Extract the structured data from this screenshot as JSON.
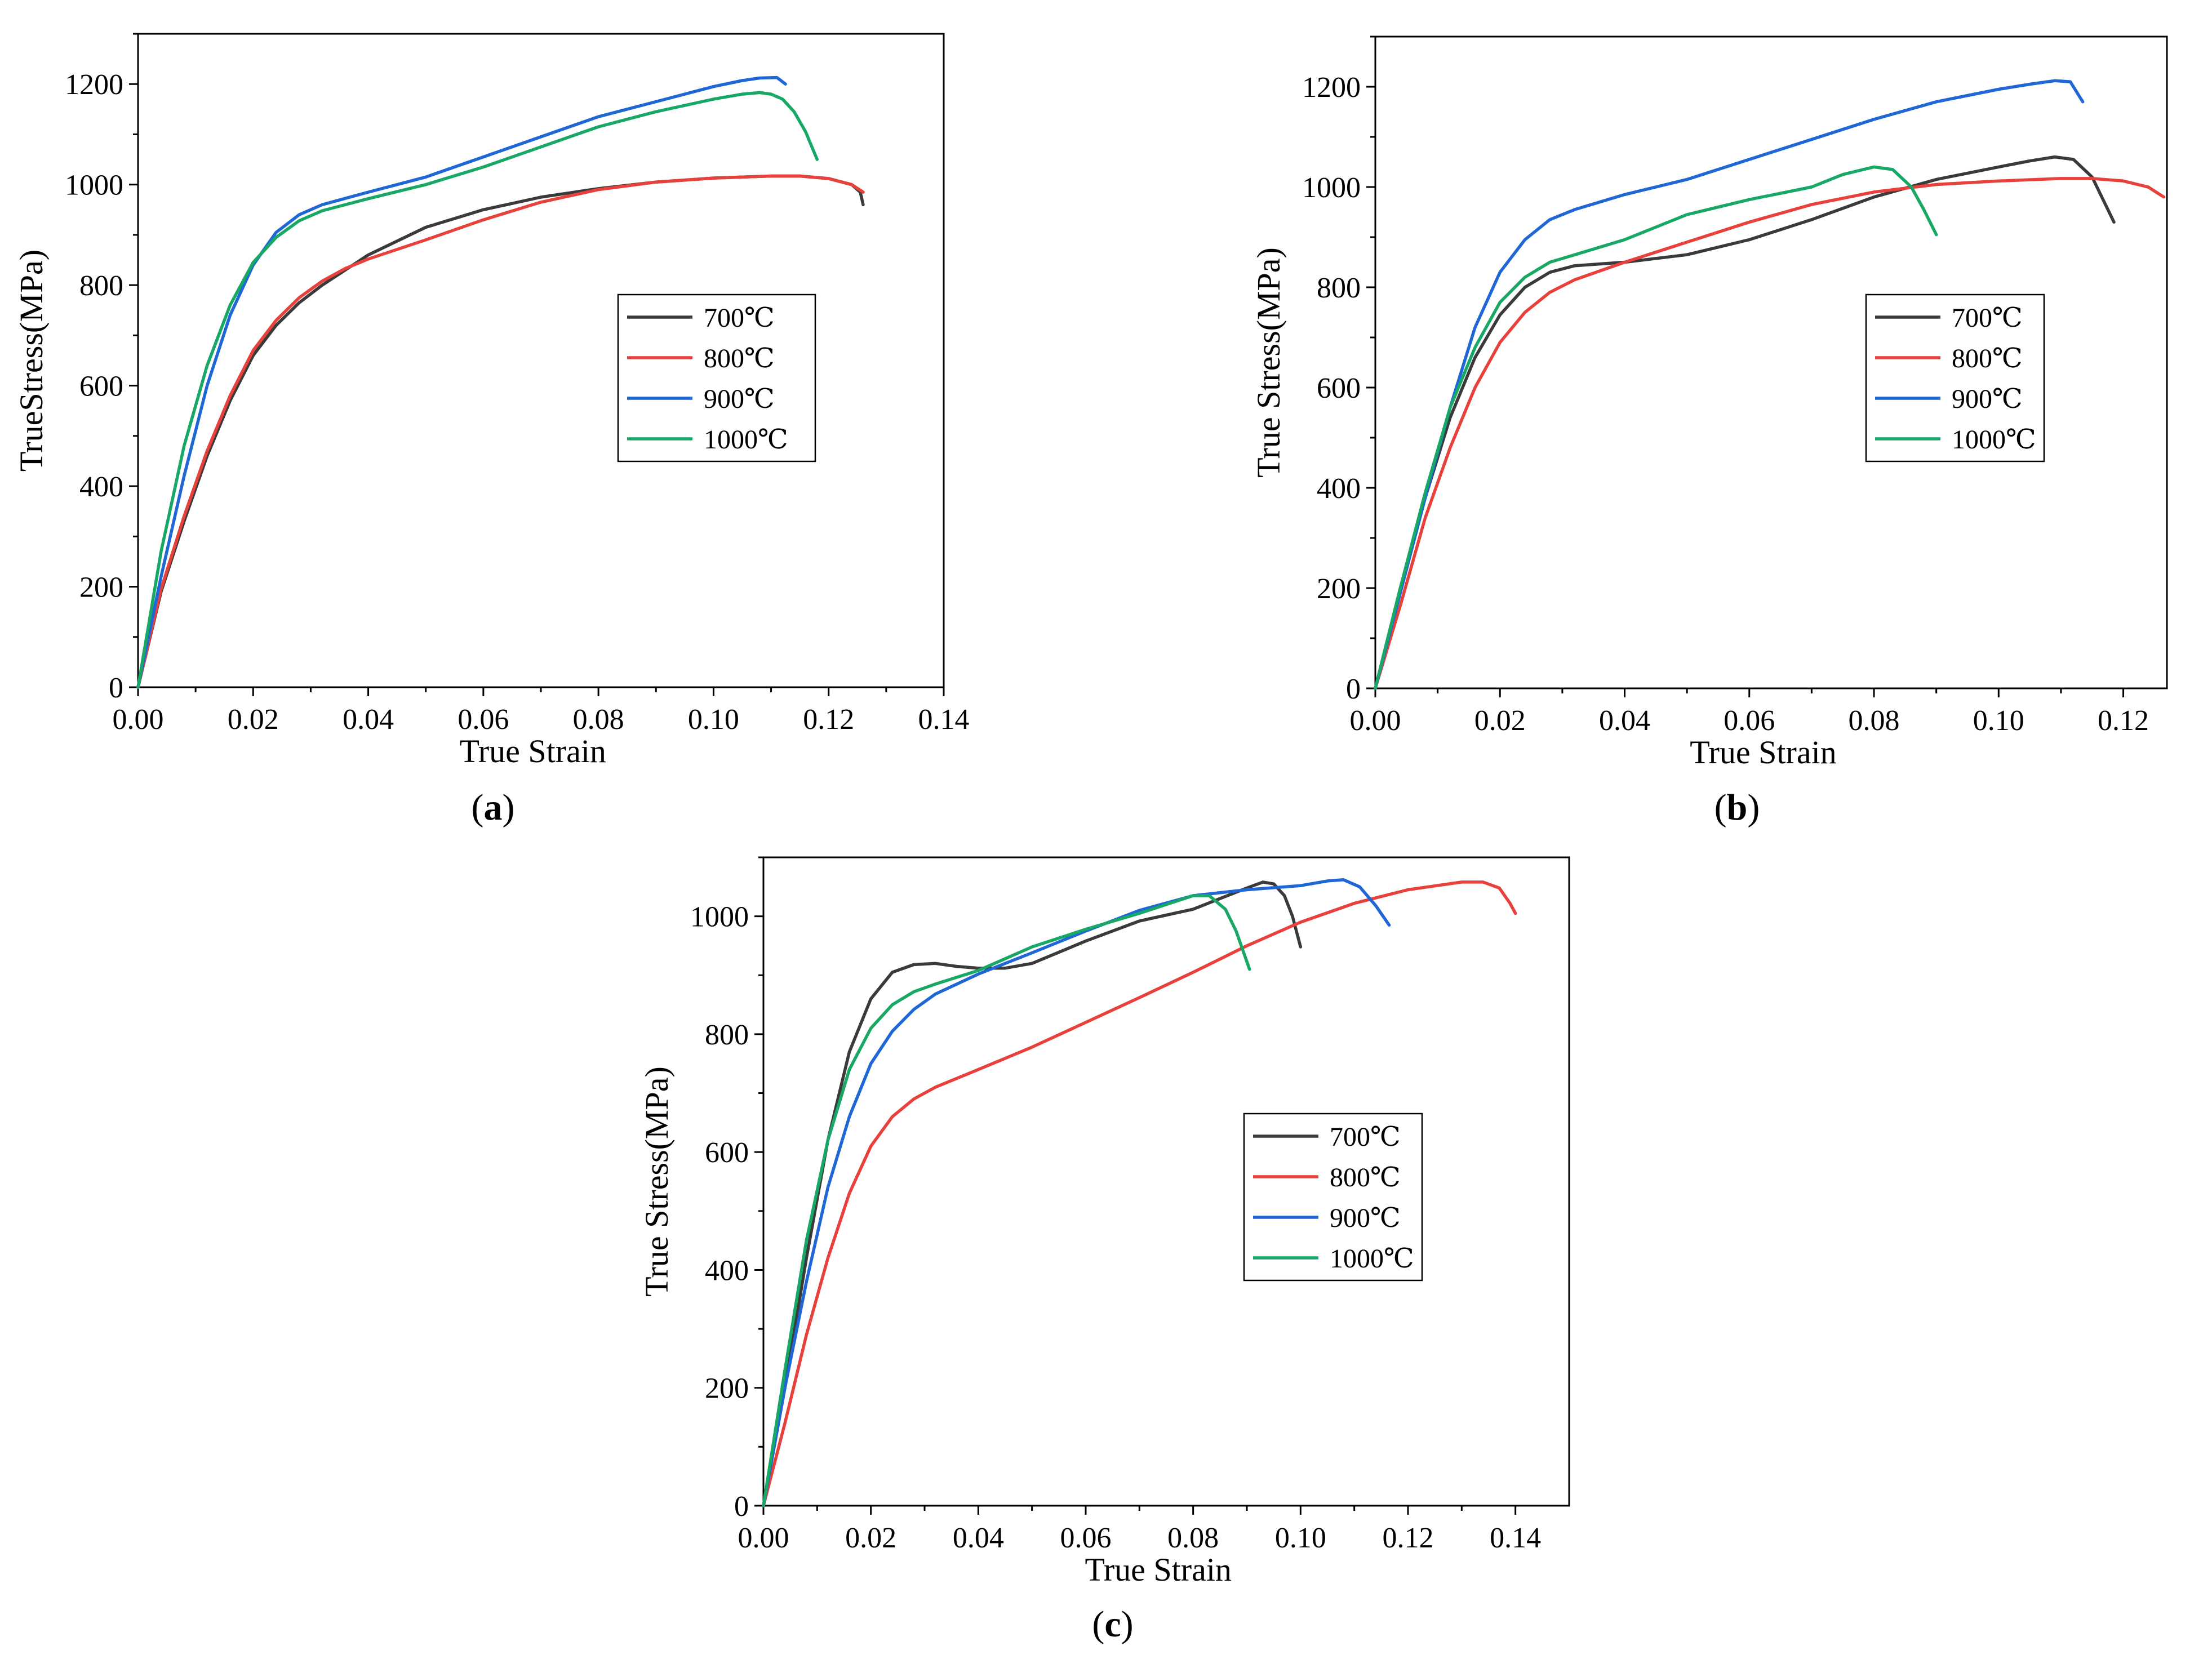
{
  "figure": {
    "panels": [
      "a",
      "b",
      "c"
    ]
  },
  "chart_data": [
    {
      "id": "a",
      "type": "line",
      "panel_label": "a",
      "xlabel": "True Strain",
      "ylabel": "TrueStress(MPa)",
      "xlim": [
        0,
        0.14
      ],
      "ylim": [
        0,
        1300
      ],
      "xticks": [
        "0.00",
        "0.02",
        "0.04",
        "0.06",
        "0.08",
        "0.10",
        "0.12",
        "0.14"
      ],
      "yticks": [
        "0",
        "200",
        "400",
        "600",
        "800",
        "1000",
        "1200"
      ],
      "legend_position": "center-right",
      "series": [
        {
          "name": "700℃",
          "color": "#3a3a3a",
          "x": [
            0,
            0.004,
            0.008,
            0.012,
            0.016,
            0.02,
            0.024,
            0.028,
            0.032,
            0.04,
            0.05,
            0.06,
            0.07,
            0.08,
            0.09,
            0.1,
            0.11,
            0.115,
            0.12,
            0.124,
            0.1255,
            0.126
          ],
          "y": [
            0,
            190,
            330,
            460,
            570,
            660,
            720,
            765,
            800,
            860,
            915,
            950,
            975,
            992,
            1005,
            1013,
            1017,
            1017,
            1012,
            1000,
            985,
            960
          ]
        },
        {
          "name": "800℃",
          "color": "#e8413b",
          "x": [
            0,
            0.004,
            0.008,
            0.012,
            0.016,
            0.02,
            0.024,
            0.028,
            0.032,
            0.036,
            0.04,
            0.05,
            0.06,
            0.07,
            0.08,
            0.09,
            0.1,
            0.11,
            0.115,
            0.12,
            0.124,
            0.126
          ],
          "y": [
            0,
            195,
            340,
            470,
            580,
            670,
            730,
            775,
            808,
            833,
            852,
            890,
            930,
            965,
            990,
            1005,
            1013,
            1017,
            1017,
            1012,
            1000,
            985
          ]
        },
        {
          "name": "900℃",
          "color": "#1f66d6",
          "x": [
            0,
            0.004,
            0.008,
            0.012,
            0.016,
            0.02,
            0.024,
            0.028,
            0.032,
            0.04,
            0.05,
            0.06,
            0.07,
            0.08,
            0.09,
            0.1,
            0.105,
            0.108,
            0.111,
            0.1125
          ],
          "y": [
            0,
            220,
            420,
            600,
            740,
            840,
            905,
            940,
            960,
            985,
            1015,
            1055,
            1095,
            1135,
            1165,
            1195,
            1207,
            1212,
            1213,
            1200
          ]
        },
        {
          "name": "1000℃",
          "color": "#17a865",
          "x": [
            0,
            0.004,
            0.008,
            0.012,
            0.016,
            0.02,
            0.024,
            0.028,
            0.032,
            0.04,
            0.05,
            0.06,
            0.07,
            0.08,
            0.09,
            0.1,
            0.105,
            0.108,
            0.11,
            0.112,
            0.114,
            0.116,
            0.118
          ],
          "y": [
            0,
            270,
            480,
            640,
            760,
            845,
            895,
            928,
            948,
            972,
            1000,
            1035,
            1075,
            1115,
            1145,
            1170,
            1180,
            1183,
            1180,
            1170,
            1145,
            1105,
            1050
          ]
        }
      ]
    },
    {
      "id": "b",
      "type": "line",
      "panel_label": "b",
      "xlabel": "True Strain",
      "ylabel": "True Stress(MPa)",
      "xlim": [
        0,
        0.127
      ],
      "ylim": [
        0,
        1300
      ],
      "xticks": [
        "0.00",
        "0.02",
        "0.04",
        "0.06",
        "0.08",
        "0.10",
        "0.12"
      ],
      "yticks": [
        "0",
        "200",
        "400",
        "600",
        "800",
        "1000",
        "1200"
      ],
      "legend_position": "center-right",
      "series": [
        {
          "name": "700℃",
          "color": "#3a3a3a",
          "x": [
            0,
            0.004,
            0.008,
            0.012,
            0.016,
            0.02,
            0.024,
            0.028,
            0.032,
            0.04,
            0.05,
            0.06,
            0.07,
            0.08,
            0.09,
            0.1,
            0.105,
            0.109,
            0.112,
            0.115,
            0.1185
          ],
          "y": [
            0,
            200,
            380,
            540,
            660,
            745,
            800,
            830,
            843,
            850,
            865,
            895,
            935,
            980,
            1015,
            1040,
            1052,
            1060,
            1055,
            1020,
            930
          ]
        },
        {
          "name": "800℃",
          "color": "#e8413b",
          "x": [
            0,
            0.004,
            0.008,
            0.012,
            0.016,
            0.02,
            0.024,
            0.028,
            0.032,
            0.04,
            0.05,
            0.06,
            0.07,
            0.08,
            0.09,
            0.1,
            0.11,
            0.115,
            0.12,
            0.124,
            0.1265
          ],
          "y": [
            0,
            165,
            340,
            480,
            600,
            690,
            750,
            790,
            815,
            850,
            890,
            930,
            965,
            990,
            1005,
            1012,
            1017,
            1017,
            1012,
            1000,
            980
          ]
        },
        {
          "name": "900℃",
          "color": "#1f66d6",
          "x": [
            0,
            0.004,
            0.008,
            0.012,
            0.016,
            0.02,
            0.024,
            0.028,
            0.032,
            0.04,
            0.05,
            0.06,
            0.07,
            0.08,
            0.09,
            0.1,
            0.105,
            0.109,
            0.1115,
            0.1125,
            0.1135
          ],
          "y": [
            0,
            190,
            380,
            560,
            720,
            830,
            895,
            935,
            955,
            985,
            1015,
            1055,
            1095,
            1135,
            1170,
            1195,
            1205,
            1212,
            1210,
            1190,
            1170
          ]
        },
        {
          "name": "1000℃",
          "color": "#17a865",
          "x": [
            0,
            0.004,
            0.008,
            0.012,
            0.016,
            0.02,
            0.024,
            0.028,
            0.032,
            0.04,
            0.05,
            0.06,
            0.07,
            0.075,
            0.08,
            0.083,
            0.086,
            0.088,
            0.09
          ],
          "y": [
            0,
            200,
            390,
            560,
            680,
            770,
            820,
            850,
            865,
            895,
            945,
            975,
            1000,
            1025,
            1040,
            1035,
            1000,
            955,
            905
          ]
        }
      ]
    },
    {
      "id": "c",
      "type": "line",
      "panel_label": "c",
      "xlabel": "True Strain",
      "ylabel": "True Stress(MPa)",
      "xlim": [
        0,
        0.15
      ],
      "ylim": [
        0,
        1100
      ],
      "xticks": [
        "0.00",
        "0.02",
        "0.04",
        "0.06",
        "0.08",
        "0.10",
        "0.12",
        "0.14"
      ],
      "yticks": [
        "0",
        "200",
        "400",
        "600",
        "800",
        "1000"
      ],
      "legend_position": "center-right",
      "series": [
        {
          "name": "700℃",
          "color": "#3a3a3a",
          "x": [
            0,
            0.004,
            0.008,
            0.012,
            0.016,
            0.02,
            0.024,
            0.028,
            0.032,
            0.036,
            0.04,
            0.045,
            0.05,
            0.06,
            0.07,
            0.08,
            0.085,
            0.09,
            0.093,
            0.095,
            0.097,
            0.0985,
            0.1
          ],
          "y": [
            0,
            200,
            420,
            620,
            770,
            860,
            905,
            918,
            920,
            915,
            912,
            912,
            920,
            958,
            992,
            1012,
            1030,
            1048,
            1058,
            1055,
            1035,
            1000,
            948
          ]
        },
        {
          "name": "800℃",
          "color": "#e8413b",
          "x": [
            0,
            0.004,
            0.008,
            0.012,
            0.016,
            0.02,
            0.024,
            0.028,
            0.032,
            0.04,
            0.05,
            0.06,
            0.07,
            0.08,
            0.09,
            0.1,
            0.11,
            0.12,
            0.13,
            0.134,
            0.137,
            0.139,
            0.14
          ],
          "y": [
            0,
            140,
            290,
            420,
            530,
            610,
            660,
            690,
            710,
            740,
            778,
            820,
            862,
            905,
            950,
            990,
            1022,
            1045,
            1058,
            1058,
            1048,
            1022,
            1005
          ]
        },
        {
          "name": "900℃",
          "color": "#1f66d6",
          "x": [
            0,
            0.004,
            0.008,
            0.012,
            0.016,
            0.02,
            0.024,
            0.028,
            0.032,
            0.04,
            0.05,
            0.06,
            0.07,
            0.08,
            0.09,
            0.1,
            0.105,
            0.108,
            0.111,
            0.114,
            0.1165
          ],
          "y": [
            0,
            200,
            380,
            540,
            660,
            750,
            805,
            842,
            868,
            902,
            938,
            975,
            1010,
            1035,
            1045,
            1052,
            1060,
            1062,
            1050,
            1018,
            985
          ]
        },
        {
          "name": "1000℃",
          "color": "#17a865",
          "x": [
            0,
            0.004,
            0.008,
            0.012,
            0.016,
            0.02,
            0.024,
            0.028,
            0.032,
            0.04,
            0.05,
            0.06,
            0.07,
            0.075,
            0.08,
            0.083,
            0.086,
            0.088,
            0.0905
          ],
          "y": [
            0,
            230,
            450,
            620,
            740,
            810,
            850,
            872,
            885,
            908,
            948,
            978,
            1005,
            1020,
            1035,
            1035,
            1012,
            975,
            910
          ]
        }
      ]
    }
  ]
}
